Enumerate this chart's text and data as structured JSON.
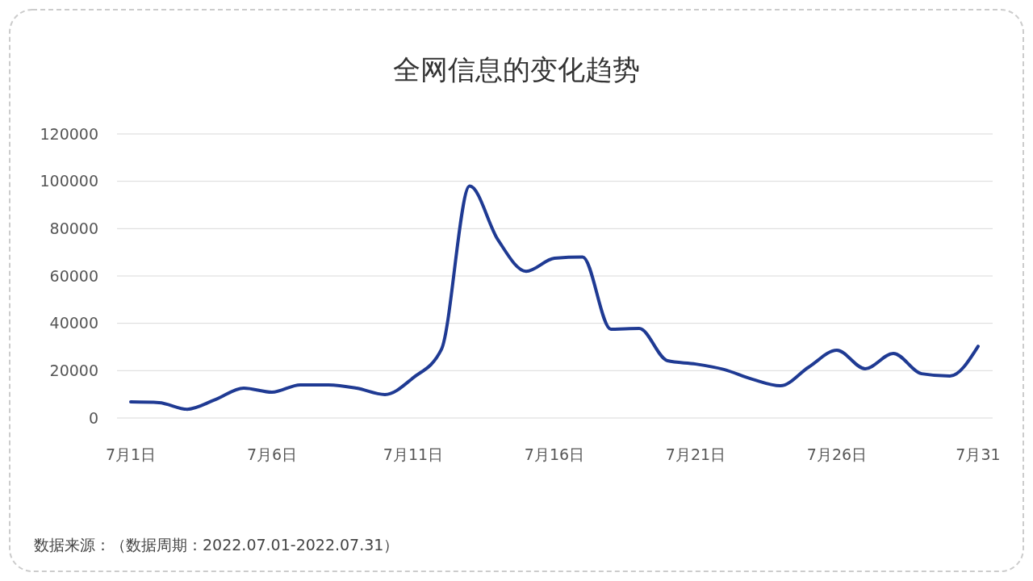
{
  "chart_data": {
    "type": "line",
    "title": "全网信息的变化趋势",
    "categories": [
      "7月1日",
      null,
      null,
      null,
      null,
      "7月6日",
      null,
      null,
      null,
      null,
      "7月11日",
      null,
      null,
      null,
      null,
      "7月16日",
      null,
      null,
      null,
      null,
      "7月21日",
      null,
      null,
      null,
      null,
      "7月26日",
      null,
      null,
      null,
      null,
      "7月31"
    ],
    "series": [
      {
        "color": "#1f3a93",
        "values": [
          6800,
          6500,
          3700,
          7800,
          12600,
          10900,
          14000,
          14000,
          12600,
          9900,
          17000,
          29000,
          98000,
          75300,
          62000,
          67500,
          68000,
          37500,
          37800,
          24200,
          22800,
          20500,
          16400,
          13600,
          21500,
          28600,
          20800,
          27300,
          18700,
          17700,
          30300
        ]
      }
    ],
    "ylim": [
      0,
      120000
    ],
    "yticks": [
      0,
      20000,
      40000,
      60000,
      80000,
      100000,
      120000
    ],
    "grid": "y",
    "marker": "none",
    "line_style": "solid",
    "annotations": [
      "数据来源：（数据周期：2022.07.01-2022.07.31）"
    ]
  }
}
